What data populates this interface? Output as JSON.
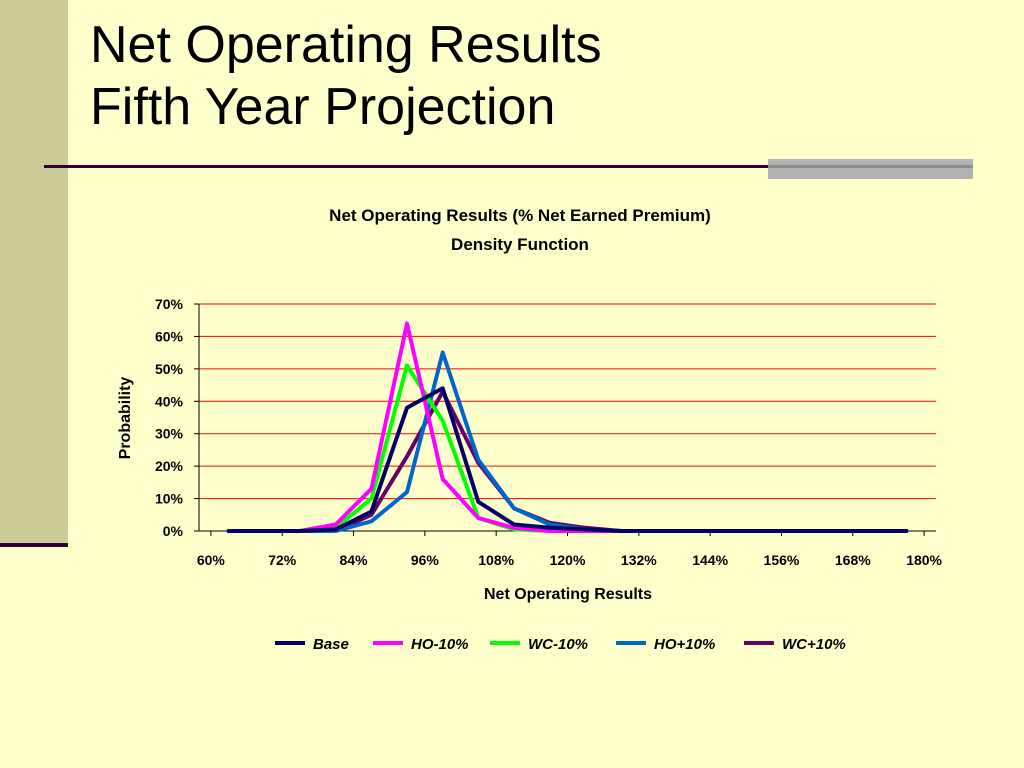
{
  "slide": {
    "title_line1": "Net Operating Results",
    "title_line2": "Fifth Year Projection"
  },
  "colors": {
    "background": "#FFFFCC",
    "left_bar": "#CCCC99",
    "accent_line": "#330033",
    "gridline": "#FF0000"
  },
  "chart_data": {
    "type": "line",
    "title": "Net Operating Results (% Net Earned Premium)",
    "subtitle": "Density Function",
    "xlabel": "Net Operating Results",
    "ylabel": "Probability",
    "xlim": [
      0.58,
      1.82
    ],
    "ylim": [
      0,
      0.7
    ],
    "x_ticks": [
      "60%",
      "72%",
      "84%",
      "96%",
      "108%",
      "120%",
      "132%",
      "144%",
      "156%",
      "168%",
      "180%"
    ],
    "x_tick_values": [
      0.6,
      0.72,
      0.84,
      0.96,
      1.08,
      1.2,
      1.32,
      1.44,
      1.56,
      1.68,
      1.8
    ],
    "y_ticks": [
      "0%",
      "10%",
      "20%",
      "30%",
      "40%",
      "50%",
      "60%",
      "70%"
    ],
    "y_tick_values": [
      0,
      0.1,
      0.2,
      0.3,
      0.4,
      0.5,
      0.6,
      0.7
    ],
    "grid": "horizontal",
    "legend_position": "bottom",
    "x": [
      0.63,
      0.69,
      0.75,
      0.81,
      0.87,
      0.93,
      0.99,
      1.05,
      1.11,
      1.17,
      1.23,
      1.29,
      1.35,
      1.41,
      1.47,
      1.53,
      1.59,
      1.65,
      1.71,
      1.77
    ],
    "series": [
      {
        "name": "Base",
        "color": "#000066",
        "values": [
          0,
          0,
          0,
          0.005,
          0.06,
          0.38,
          0.44,
          0.09,
          0.02,
          0.01,
          0.005,
          0,
          0,
          0,
          0,
          0,
          0,
          0,
          0,
          0
        ]
      },
      {
        "name": "HO-10%",
        "color": "#FF00FF",
        "values": [
          0,
          0,
          0,
          0.02,
          0.13,
          0.64,
          0.16,
          0.04,
          0.01,
          0,
          0,
          0,
          0,
          0,
          0,
          0,
          0,
          0,
          0,
          0
        ]
      },
      {
        "name": "WC-10%",
        "color": "#00FF00",
        "values": [
          0,
          0,
          0,
          0.01,
          0.1,
          0.51,
          0.34,
          0.04,
          0.005,
          0,
          0,
          0,
          0,
          0,
          0,
          0,
          0,
          0,
          0,
          0
        ]
      },
      {
        "name": "HO+10%",
        "color": "#0066CC",
        "values": [
          0,
          0,
          0,
          0,
          0.03,
          0.12,
          0.55,
          0.22,
          0.07,
          0.02,
          0.005,
          0,
          0,
          0,
          0,
          0,
          0,
          0,
          0,
          0
        ]
      },
      {
        "name": "WC+10%",
        "color": "#660066",
        "values": [
          0,
          0,
          0,
          0,
          0.05,
          0.23,
          0.43,
          0.21,
          0.07,
          0.025,
          0.01,
          0,
          0,
          0,
          0,
          0,
          0,
          0,
          0,
          0
        ]
      }
    ]
  }
}
